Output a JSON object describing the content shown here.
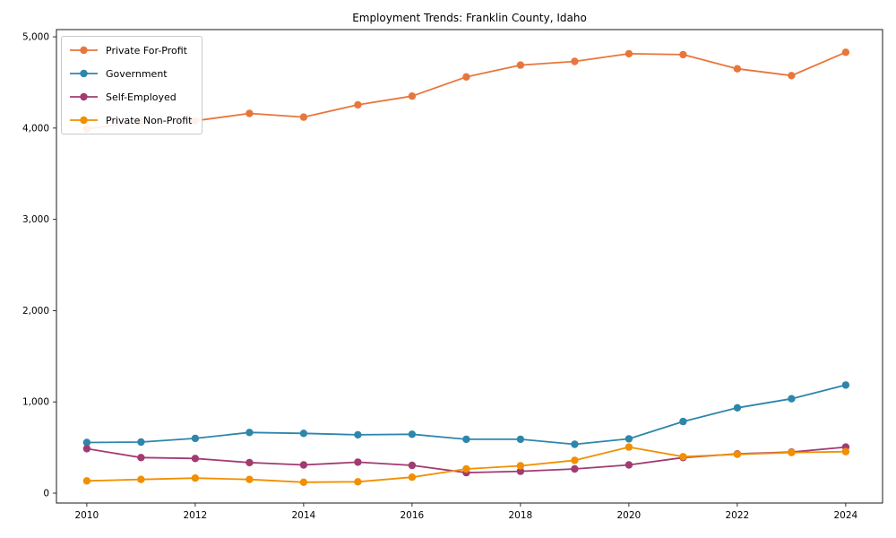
{
  "figure": {
    "title": "Employment Trends: Franklin County, Idaho"
  },
  "chart_data": {
    "type": "line",
    "title": "Employment Trends: Franklin County, Idaho",
    "xlabel": "",
    "ylabel": "",
    "grid": false,
    "legend_position": "upper-left",
    "marker": "circle",
    "background": "#ffffff",
    "x": [
      2010,
      2011,
      2012,
      2013,
      2014,
      2015,
      2016,
      2017,
      2018,
      2019,
      2020,
      2021,
      2022,
      2023,
      2024
    ],
    "series": [
      {
        "name": "Private For-Profit",
        "color": "#E8763C",
        "values": [
          3990,
          4070,
          4080,
          4160,
          4120,
          4255,
          4350,
          4560,
          4690,
          4730,
          4815,
          4805,
          4650,
          4575,
          4830
        ]
      },
      {
        "name": "Government",
        "color": "#2E86AB",
        "values": [
          555,
          560,
          600,
          665,
          655,
          640,
          645,
          590,
          590,
          535,
          595,
          785,
          935,
          1035,
          1185
        ]
      },
      {
        "name": "Self-Employed",
        "color": "#A23B72",
        "values": [
          487,
          390,
          380,
          335,
          310,
          340,
          305,
          225,
          240,
          265,
          310,
          390,
          430,
          450,
          505
        ]
      },
      {
        "name": "Private Non-Profit",
        "color": "#F18F01",
        "values": [
          135,
          150,
          165,
          150,
          120,
          125,
          175,
          265,
          300,
          360,
          505,
          400,
          425,
          445,
          455
        ]
      }
    ],
    "xlim": [
      2009.44,
      2024.68
    ],
    "ylim": [
      -108,
      5079
    ],
    "xticks": [
      2010,
      2012,
      2014,
      2016,
      2018,
      2020,
      2022,
      2024
    ],
    "yticks": [
      0,
      1000,
      2000,
      3000,
      4000,
      5000
    ],
    "ytick_labels": [
      "0",
      "1,000",
      "2,000",
      "3,000",
      "4,000",
      "5,000"
    ]
  }
}
